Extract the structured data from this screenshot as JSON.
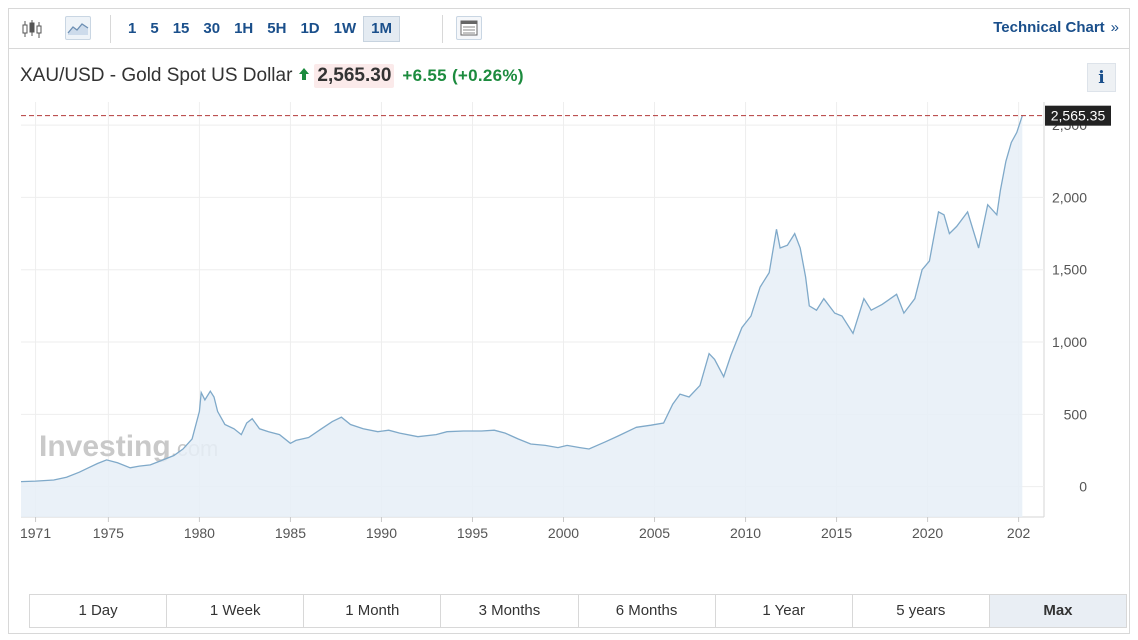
{
  "toolbar": {
    "chart_type_icons": [
      "candlestick-icon",
      "area-chart-icon"
    ],
    "intervals": [
      "1",
      "5",
      "15",
      "30",
      "1H",
      "5H",
      "1D",
      "1W",
      "1M"
    ],
    "active_interval": "1M",
    "layout_icon": "layout-icon",
    "technical_chart_label": "Technical Chart",
    "technical_chart_chevron": "»"
  },
  "header": {
    "title": "XAU/USD - Gold Spot US Dollar",
    "price": "2,565.30",
    "change": "+6.55",
    "change_pct": "(+0.26%)",
    "info_label": "i"
  },
  "colors": {
    "accent": "#1a4f8b",
    "positive": "#1c8b3e",
    "line": "#7fa9c9",
    "area_fill": "#e6eef7",
    "last_price_line": "#b33a3a"
  },
  "watermark": {
    "brand": "Investing",
    "suffix": ".com"
  },
  "chart_data": {
    "type": "area",
    "title": "XAU/USD - Gold Spot US Dollar",
    "xlabel": "",
    "ylabel": "",
    "x_ticks": [
      "1971",
      "1975",
      "1980",
      "1985",
      "1990",
      "1995",
      "2000",
      "2005",
      "2010",
      "2015",
      "2020",
      "202"
    ],
    "y_ticks": [
      "0",
      "500",
      "1,000",
      "1,500",
      "2,000",
      "2,500"
    ],
    "ylim": [
      -210,
      2660
    ],
    "xlim": [
      1970.2,
      2025.9
    ],
    "last_price_label": "2,565.35",
    "last_price": 2565.35,
    "grid": true,
    "series": [
      {
        "x": [
          1970.2,
          1971.0,
          1972.0,
          1972.7,
          1973.4,
          1973.9,
          1974.4,
          1974.9,
          1975.5,
          1976.2,
          1976.7,
          1977.3,
          1977.9,
          1978.6,
          1979.1,
          1979.6,
          1980.0,
          1980.1,
          1980.3,
          1980.6,
          1980.8,
          1981.0,
          1981.4,
          1981.9,
          1982.3,
          1982.6,
          1982.9,
          1983.3,
          1983.8,
          1984.4,
          1985.0,
          1985.3,
          1986.0,
          1986.7,
          1987.3,
          1987.8,
          1988.3,
          1989.0,
          1989.8,
          1990.4,
          1991.0,
          1992.0,
          1993.0,
          1993.6,
          1994.5,
          1995.5,
          1996.2,
          1996.8,
          1997.5,
          1998.2,
          1999.0,
          1999.7,
          2000.2,
          2000.9,
          2001.4,
          2002.3,
          2003.0,
          2004.0,
          2004.8,
          2005.5,
          2006.0,
          2006.4,
          2006.9,
          2007.5,
          2008.0,
          2008.3,
          2008.8,
          2009.2,
          2009.8,
          2010.3,
          2010.8,
          2011.3,
          2011.7,
          2011.9,
          2012.3,
          2012.7,
          2013.0,
          2013.3,
          2013.5,
          2013.9,
          2014.3,
          2014.9,
          2015.3,
          2015.9,
          2016.5,
          2016.9,
          2017.5,
          2018.3,
          2018.7,
          2019.3,
          2019.7,
          2020.1,
          2020.6,
          2020.9,
          2021.2,
          2021.6,
          2022.2,
          2022.8,
          2023.3,
          2023.8,
          2024.0,
          2024.3,
          2024.6,
          2024.9,
          2025.2
        ],
        "y": [
          35,
          38,
          46,
          65,
          100,
          130,
          160,
          185,
          165,
          130,
          142,
          150,
          180,
          215,
          260,
          330,
          520,
          650,
          600,
          660,
          620,
          520,
          430,
          400,
          360,
          440,
          470,
          400,
          380,
          360,
          300,
          320,
          340,
          400,
          450,
          480,
          430,
          400,
          380,
          390,
          370,
          345,
          360,
          380,
          385,
          385,
          390,
          370,
          330,
          295,
          285,
          270,
          285,
          270,
          260,
          310,
          350,
          410,
          425,
          440,
          570,
          640,
          620,
          700,
          920,
          880,
          760,
          910,
          1100,
          1180,
          1380,
          1480,
          1780,
          1650,
          1670,
          1750,
          1650,
          1450,
          1250,
          1220,
          1300,
          1200,
          1180,
          1060,
          1300,
          1220,
          1260,
          1330,
          1200,
          1300,
          1500,
          1560,
          1900,
          1880,
          1750,
          1800,
          1900,
          1650,
          1950,
          1880,
          2050,
          2250,
          2380,
          2450,
          2565
        ]
      }
    ]
  },
  "ranges": [
    "1 Day",
    "1 Week",
    "1 Month",
    "3 Months",
    "6 Months",
    "1 Year",
    "5 years",
    "Max"
  ],
  "active_range": "Max"
}
